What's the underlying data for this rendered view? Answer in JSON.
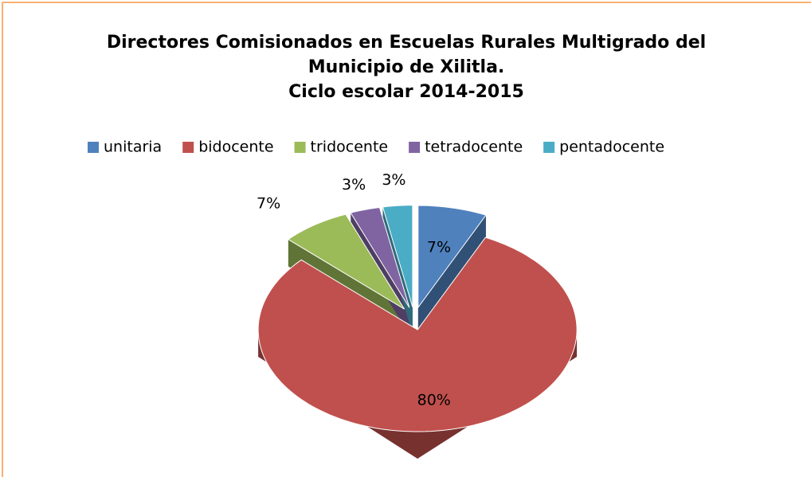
{
  "chart_data": {
    "type": "pie",
    "title": "Directores Comisionados en Escuelas Rurales Multigrado del Municipio de Xilitla.",
    "subtitle": "Ciclo escolar 2014-2015",
    "categories": [
      "unitaria",
      "bidocente",
      "tridocente",
      "tetradocente",
      "pentadocente"
    ],
    "values": [
      7,
      80,
      7,
      3,
      3
    ],
    "value_labels": [
      "7%",
      "80%",
      "7%",
      "3%",
      "3%"
    ],
    "colors": [
      "#4f81bd",
      "#c0504d",
      "#9bbb59",
      "#8064a2",
      "#4bacc6"
    ],
    "legend": "top"
  }
}
